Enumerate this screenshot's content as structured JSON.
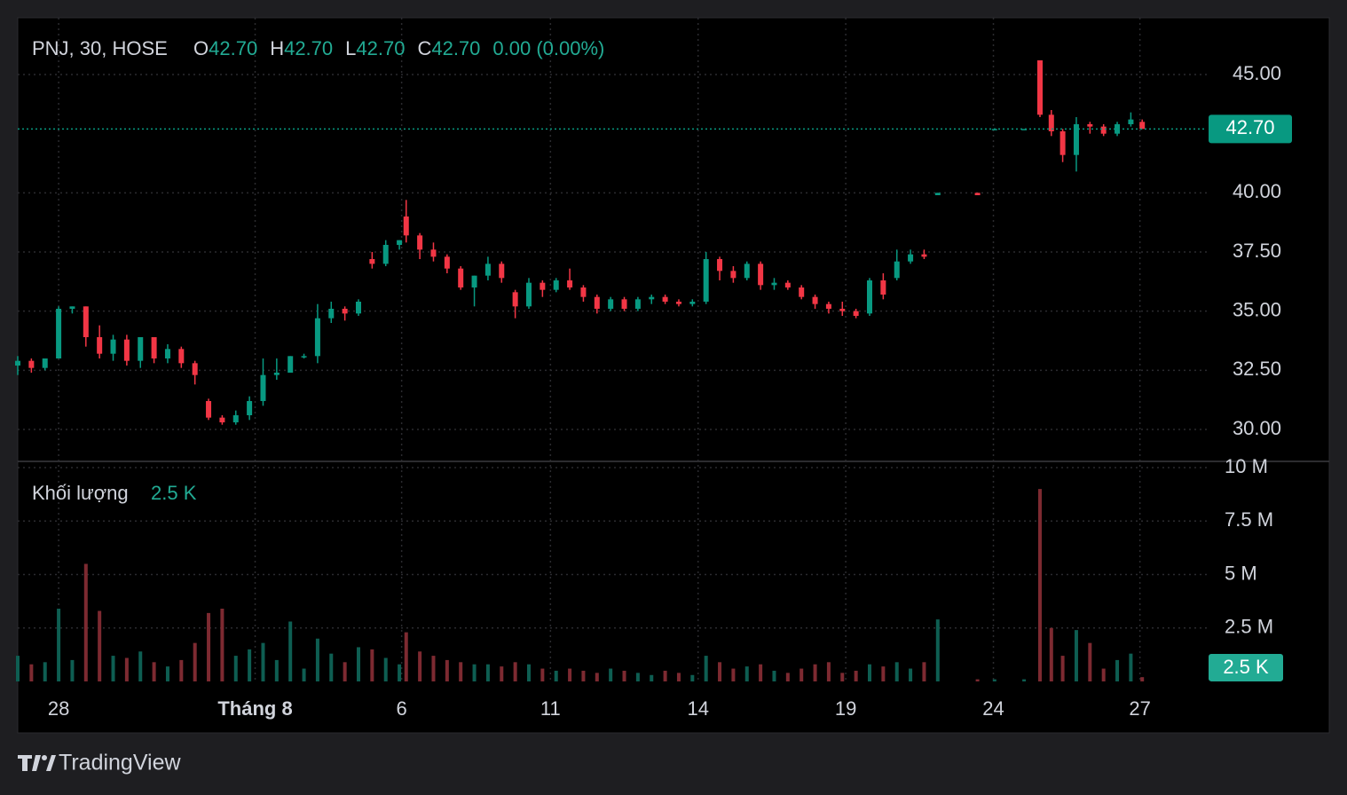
{
  "chart_data": {
    "type": "candlestick",
    "title": "PNJ, 30, HOSE",
    "ohlc_legend": [
      {
        "key": "O",
        "value": "42.70"
      },
      {
        "key": "H",
        "value": "42.70"
      },
      {
        "key": "L",
        "value": "42.70"
      },
      {
        "key": "C",
        "value": "42.70"
      }
    ],
    "change": "0.00 (0.00%)",
    "volume_title": "Khối lượng",
    "up_color": "#089981",
    "down_color": "#f23645",
    "volume_up_color": "#0e5e52",
    "volume_down_color": "#7d2a31",
    "grid": true,
    "x": [
      0,
      1.2,
      2.4,
      3.6,
      4.8,
      6,
      7.2,
      8.4,
      9.6,
      10.8,
      12,
      13.2,
      14.4,
      15.6,
      16.8,
      18,
      19.2,
      20.4,
      21.6,
      22.8,
      24,
      25.2,
      26.4,
      27.6,
      28.8,
      30,
      31.2,
      32.4,
      33.6,
      34.2,
      35.4,
      36.6,
      37.8,
      39,
      40.2,
      41.4,
      42.6,
      43.8,
      45,
      46.2,
      47.4,
      48.6,
      49.8,
      51,
      52.2,
      53.4,
      54.6,
      55.8,
      57,
      58.2,
      59.4,
      60.6,
      61.8,
      63,
      64.2,
      65.4,
      66.6,
      67.8,
      69,
      70.2,
      71.4,
      72.6,
      73.8,
      75,
      76.2,
      77.4,
      78.6,
      79.8,
      81,
      84.5,
      86,
      88.6,
      90,
      91,
      92,
      93.2,
      94.4,
      95.6,
      96.8,
      98,
      99
    ],
    "open": [
      32.7,
      32.9,
      32.6,
      33.0,
      35.1,
      35.2,
      33.9,
      33.2,
      33.8,
      32.9,
      33.9,
      33.0,
      33.4,
      32.8,
      31.2,
      30.5,
      30.3,
      30.6,
      31.2,
      32.3,
      32.4,
      33.1,
      33.1,
      34.7,
      35.1,
      34.9,
      37.2,
      37.0,
      37.8,
      39.0,
      38.2,
      37.6,
      37.3,
      36.8,
      36.0,
      36.5,
      37.0,
      35.8,
      35.2,
      36.2,
      35.9,
      36.3,
      36.0,
      35.6,
      35.1,
      35.5,
      35.1,
      35.5,
      35.6,
      35.4,
      35.3,
      35.4,
      37.2,
      36.7,
      36.4,
      37.0,
      36.1,
      36.2,
      36.0,
      35.6,
      35.3,
      35.1,
      35.0,
      34.9,
      36.3,
      36.4,
      37.1,
      37.4,
      39.9,
      40.0,
      42.7,
      42.7,
      45.6,
      43.3,
      42.6,
      41.6,
      42.9,
      42.8,
      42.5,
      42.9,
      43.0
    ],
    "high": [
      33.1,
      33.0,
      33.0,
      35.2,
      35.2,
      35.2,
      34.4,
      34.0,
      34.0,
      33.9,
      33.9,
      33.6,
      33.5,
      32.9,
      31.3,
      30.6,
      30.8,
      31.4,
      33.0,
      33.0,
      33.1,
      33.2,
      35.3,
      35.4,
      35.2,
      35.5,
      37.5,
      38.0,
      38.0,
      39.7,
      38.3,
      37.9,
      37.4,
      36.9,
      36.5,
      37.3,
      37.1,
      35.9,
      36.4,
      36.3,
      36.4,
      36.8,
      36.1,
      35.7,
      35.6,
      35.6,
      35.6,
      35.7,
      35.7,
      35.5,
      35.5,
      37.5,
      37.3,
      36.9,
      37.1,
      37.1,
      36.4,
      36.3,
      36.1,
      35.7,
      35.4,
      35.4,
      35.1,
      36.4,
      36.6,
      37.6,
      37.6,
      37.6,
      40.0,
      40.0,
      42.7,
      42.7,
      45.6,
      43.5,
      42.7,
      43.2,
      43.0,
      42.9,
      43.0,
      43.4,
      43.1
    ],
    "low": [
      32.3,
      32.4,
      32.5,
      33.0,
      34.9,
      33.5,
      33.0,
      32.9,
      32.7,
      32.6,
      32.8,
      32.8,
      32.6,
      31.9,
      30.4,
      30.2,
      30.2,
      30.4,
      31.0,
      32.1,
      32.4,
      33.0,
      32.8,
      34.5,
      34.6,
      34.8,
      36.8,
      36.9,
      37.6,
      37.9,
      37.2,
      37.1,
      36.6,
      35.9,
      35.2,
      36.3,
      36.2,
      34.7,
      35.1,
      35.6,
      35.8,
      35.9,
      35.4,
      34.9,
      35.0,
      35.0,
      35.0,
      35.3,
      35.3,
      35.2,
      35.2,
      35.3,
      36.3,
      36.2,
      36.3,
      35.9,
      35.9,
      35.9,
      35.5,
      35.1,
      34.9,
      34.8,
      34.7,
      34.8,
      35.5,
      36.3,
      37.0,
      37.2,
      39.9,
      39.9,
      42.7,
      42.7,
      43.2,
      42.4,
      41.3,
      40.9,
      42.5,
      42.4,
      42.4,
      42.8,
      42.7
    ],
    "close": [
      32.9,
      32.6,
      33.0,
      35.1,
      35.2,
      33.9,
      33.2,
      33.8,
      32.9,
      33.9,
      33.0,
      33.4,
      32.8,
      32.3,
      30.5,
      30.3,
      30.6,
      31.2,
      32.3,
      32.4,
      33.1,
      33.1,
      34.7,
      35.1,
      34.9,
      35.4,
      37.0,
      37.8,
      38.0,
      38.2,
      37.6,
      37.3,
      36.8,
      36.0,
      36.5,
      37.0,
      36.4,
      35.2,
      36.2,
      35.9,
      36.3,
      36.0,
      35.6,
      35.1,
      35.5,
      35.1,
      35.5,
      35.6,
      35.4,
      35.3,
      35.4,
      37.2,
      36.7,
      36.4,
      37.0,
      36.1,
      36.2,
      36.0,
      35.6,
      35.3,
      35.1,
      35.0,
      34.8,
      36.3,
      35.7,
      37.1,
      37.4,
      37.3,
      40.0,
      39.9,
      42.7,
      42.7,
      43.3,
      42.6,
      41.6,
      42.9,
      42.8,
      42.5,
      42.9,
      43.1,
      42.7
    ],
    "volume": [
      1200000,
      800000,
      900000,
      3400000,
      1000000,
      5500000,
      3300000,
      1200000,
      1100000,
      1400000,
      900000,
      700000,
      1000000,
      1800000,
      3200000,
      3400000,
      1200000,
      1500000,
      1800000,
      1000000,
      2800000,
      600000,
      2000000,
      1300000,
      900000,
      1600000,
      1500000,
      1100000,
      800000,
      2300000,
      1400000,
      1200000,
      1000000,
      900000,
      800000,
      800000,
      700000,
      900000,
      800000,
      600000,
      500000,
      600000,
      500000,
      400000,
      600000,
      500000,
      400000,
      300000,
      500000,
      400000,
      300000,
      1200000,
      900000,
      600000,
      700000,
      800000,
      500000,
      400000,
      600000,
      800000,
      900000,
      400000,
      500000,
      800000,
      700000,
      900000,
      600000,
      900000,
      2900000,
      100000,
      100000,
      100000,
      9000000,
      2500000,
      1200000,
      2400000,
      1800000,
      600000,
      1000000,
      1300000,
      200000
    ],
    "xlim": [
      0,
      100
    ],
    "xticks": [
      {
        "value": 3.6,
        "label": "28"
      },
      {
        "value": 20.9,
        "label": "Tháng 8"
      },
      {
        "value": 33.8,
        "label": "6"
      },
      {
        "value": 46.9,
        "label": "11"
      },
      {
        "value": 59.9,
        "label": "14"
      },
      {
        "value": 72.9,
        "label": "19"
      },
      {
        "value": 85.9,
        "label": "24"
      },
      {
        "value": 98.8,
        "label": "27"
      }
    ],
    "ylim": [
      28.65,
      47.4
    ],
    "yticks": [
      {
        "value": 30,
        "label": "30.00"
      },
      {
        "value": 32.5,
        "label": "32.50"
      },
      {
        "value": 35,
        "label": "35.00"
      },
      {
        "value": 37.5,
        "label": "37.50"
      },
      {
        "value": 40,
        "label": "40.00"
      },
      {
        "value": 45,
        "label": "45.00"
      }
    ],
    "last_price": {
      "value": 42.7,
      "label": "42.70"
    },
    "volume_ylim": [
      0,
      10290000
    ],
    "volume_yticks": [
      {
        "value": 2500000,
        "label": "2.5 M"
      },
      {
        "value": 5000000,
        "label": "5 M"
      },
      {
        "value": 7500000,
        "label": "7.5 M"
      },
      {
        "value": 10000000,
        "label": "10 M"
      }
    ],
    "last_volume": {
      "value": 2500,
      "label": "2.5 K"
    },
    "brand": "TradingView"
  }
}
